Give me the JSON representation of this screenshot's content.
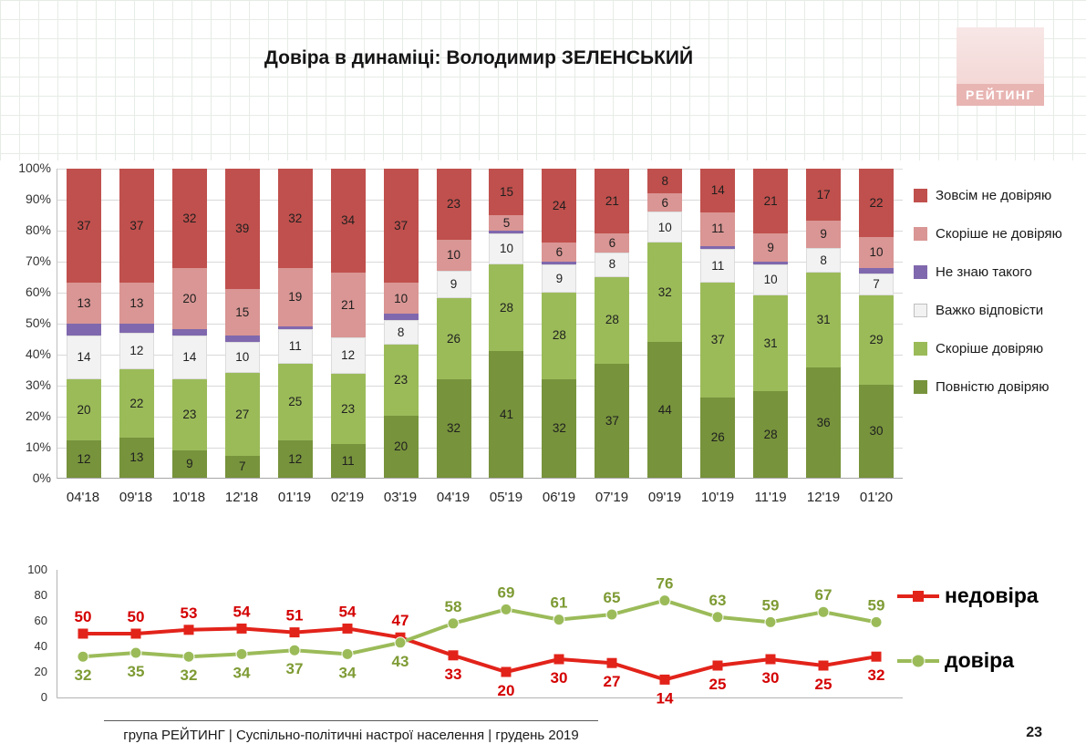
{
  "header": {
    "title": "Довіра в динаміці: Володимир ЗЕЛЕНСЬКИЙ",
    "logo": "РЕЙТИНГ"
  },
  "footer": {
    "source": "група РЕЙТИНГ | Суспільно-політичні настрої населення | грудень 2019",
    "page": "23"
  },
  "colors": {
    "grid": "#d9d9d9",
    "axis": "#a6a6a6",
    "logo_pink": "#e8b5b3"
  },
  "chart_data": [
    {
      "type": "bar",
      "stacked": true,
      "title": "Довіра в динаміці: Володимир ЗЕЛЕНСЬКИЙ",
      "categories": [
        "04'18",
        "09'18",
        "10'18",
        "12'18",
        "01'19",
        "02'19",
        "03'19",
        "04'19",
        "05'19",
        "06'19",
        "07'19",
        "09'19",
        "10'19",
        "11'19",
        "12'19",
        "01'20"
      ],
      "series": [
        {
          "key": "povnistiu-doviriaiu",
          "name": "Повністю довіряю",
          "color": "#77933c",
          "values": [
            12,
            13,
            9,
            7,
            12,
            11,
            20,
            32,
            41,
            32,
            37,
            44,
            26,
            28,
            36,
            30
          ]
        },
        {
          "key": "skorishe-doviriaiu",
          "name": "Скоріше довіряю",
          "color": "#9bbb59",
          "values": [
            20,
            22,
            23,
            27,
            25,
            23,
            23,
            26,
            28,
            28,
            28,
            32,
            37,
            31,
            31,
            29
          ]
        },
        {
          "key": "vazhko-vidpovisty",
          "name": "Важко відповісти",
          "color": "#f2f2f2",
          "border": "#dcdcdc",
          "values": [
            14,
            12,
            14,
            10,
            11,
            12,
            8,
            9,
            10,
            9,
            8,
            10,
            11,
            10,
            8,
            7
          ]
        },
        {
          "key": "ne-znaiu-takoho",
          "name": "Не знаю такого",
          "color": "#8068ae",
          "values": [
            4,
            3,
            2,
            2,
            1,
            0,
            2,
            0,
            1,
            1,
            0,
            0,
            1,
            1,
            0,
            2
          ]
        },
        {
          "key": "skorishe-ne-doviriaiu",
          "name": "Скоріше не довіряю",
          "color": "#d99694",
          "values": [
            13,
            13,
            20,
            15,
            19,
            21,
            10,
            10,
            5,
            6,
            6,
            6,
            11,
            9,
            9,
            10
          ]
        },
        {
          "key": "zovsim-ne-doviriaiu",
          "name": "Зовсім не довіряю",
          "color": "#c0504d",
          "values": [
            37,
            37,
            32,
            39,
            32,
            34,
            37,
            23,
            15,
            24,
            21,
            8,
            14,
            21,
            17,
            22
          ]
        }
      ],
      "ylim": [
        0,
        100
      ],
      "y_ticks": [
        "100%",
        "90%",
        "80%",
        "70%",
        "60%",
        "50%",
        "40%",
        "30%",
        "20%",
        "10%",
        "0%"
      ],
      "label_min": 5,
      "legend_position": "right",
      "grid": true
    },
    {
      "type": "line",
      "categories": [
        "04'18",
        "09'18",
        "10'18",
        "12'18",
        "01'19",
        "02'19",
        "03'19",
        "04'19",
        "05'19",
        "06'19",
        "07'19",
        "09'19",
        "10'19",
        "11'19",
        "12'19",
        "01'20"
      ],
      "series": [
        {
          "key": "nedovira",
          "name": "недовіра",
          "color": "#e2231a",
          "label_color": "#d40000",
          "marker": "square",
          "values": [
            50,
            50,
            53,
            54,
            51,
            54,
            47,
            33,
            20,
            30,
            27,
            14,
            25,
            30,
            25,
            32
          ]
        },
        {
          "key": "dovira",
          "name": "довіра",
          "color": "#9bbb59",
          "label_color": "#7e9b34",
          "marker": "circle",
          "values": [
            32,
            35,
            32,
            34,
            37,
            34,
            43,
            58,
            69,
            61,
            65,
            76,
            63,
            59,
            67,
            59
          ]
        }
      ],
      "ylim": [
        0,
        100
      ],
      "y_ticks": [
        100,
        80,
        60,
        40,
        20,
        0
      ],
      "legend_position": "right",
      "grid": false
    }
  ]
}
